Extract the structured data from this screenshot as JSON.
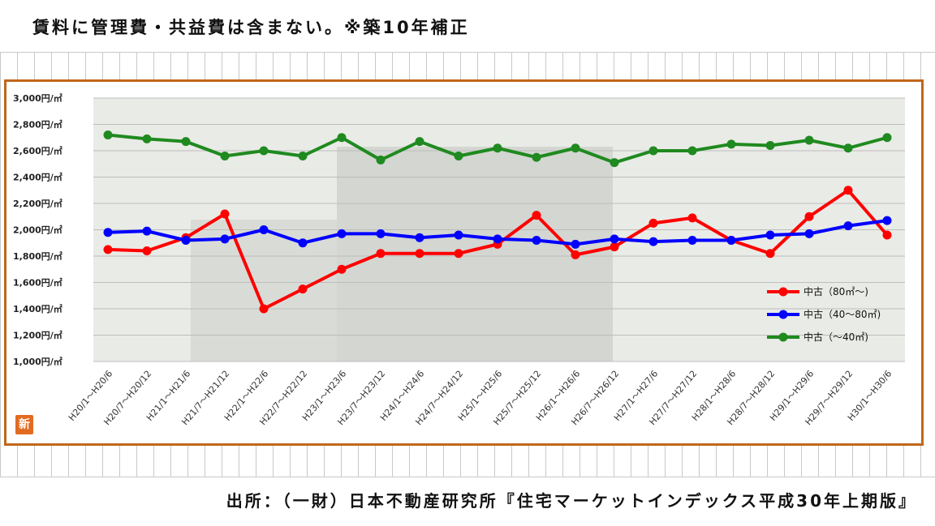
{
  "header": {
    "note": "賃料に管理費・共益費は含まない。※築10年補正"
  },
  "footer": {
    "source": "出所：（一財）日本不動産研究所『住宅マーケットインデックス平成30年上期版』"
  },
  "badge": {
    "label": "新"
  },
  "chart_data": {
    "type": "line",
    "title": "",
    "xlabel": "",
    "ylabel": "",
    "ylim": [
      1000,
      3000
    ],
    "y_ticks": [
      1000,
      1200,
      1400,
      1600,
      1800,
      2000,
      2200,
      2400,
      2600,
      2800,
      3000
    ],
    "y_tick_labels": [
      "1,000円/㎡",
      "1,200円/㎡",
      "1,400円/㎡",
      "1,600円/㎡",
      "1,800円/㎡",
      "2,000円/㎡",
      "2,200円/㎡",
      "2,400円/㎡",
      "2,600円/㎡",
      "2,800円/㎡",
      "3,000円/㎡"
    ],
    "grid": true,
    "legend_position": "right",
    "categories": [
      "H20/1～H20/6",
      "H20/7～H20/12",
      "H21/1～H21/6",
      "H21/7～H21/12",
      "H22/1～H22/6",
      "H22/7～H22/12",
      "H23/1～H23/6",
      "H23/7～H23/12",
      "H24/1～H24/6",
      "H24/7～H24/12",
      "H25/1～H25/6",
      "H25/7～H25/12",
      "H26/1～H26/6",
      "H26/7～H26/12",
      "H27/1～H27/6",
      "H27/7～H27/12",
      "H28/1～H28/6",
      "H28/7～H28/12",
      "H29/1～H29/6",
      "H29/7～H29/12",
      "H30/1～H30/6"
    ],
    "series": [
      {
        "name": "中古（80㎡～)",
        "color": "#ff0000",
        "values": [
          1850,
          1840,
          1940,
          2120,
          1400,
          1550,
          1700,
          1820,
          1820,
          1820,
          1890,
          2110,
          1810,
          1870,
          2050,
          2090,
          1920,
          1820,
          2100,
          2300,
          1960
        ]
      },
      {
        "name": "中古（40～80㎡)",
        "color": "#0000ff",
        "values": [
          1980,
          1990,
          1920,
          1930,
          2000,
          1900,
          1970,
          1970,
          1940,
          1960,
          1930,
          1920,
          1890,
          1930,
          1910,
          1920,
          1920,
          1960,
          1970,
          2030,
          2070
        ]
      },
      {
        "name": "中古（～40㎡)",
        "color": "#1f8a1f",
        "values": [
          2720,
          2690,
          2670,
          2560,
          2600,
          2560,
          2700,
          2530,
          2670,
          2560,
          2620,
          2550,
          2620,
          2510,
          2600,
          2600,
          2650,
          2640,
          2680,
          2620,
          2700
        ]
      }
    ]
  }
}
